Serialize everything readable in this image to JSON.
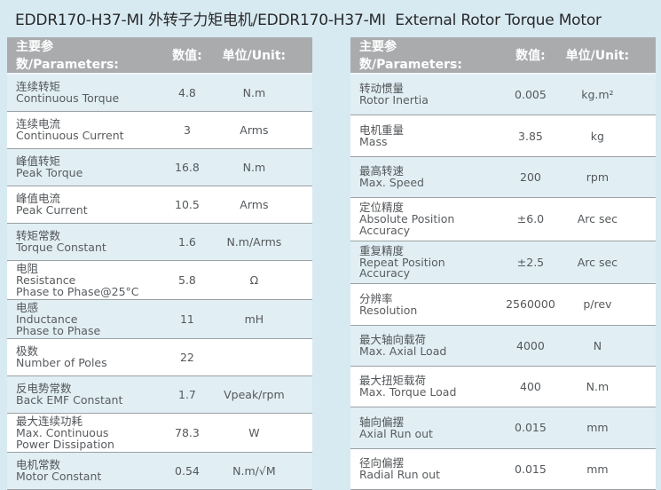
{
  "title": "EDDR170-H37-MI 外转子力矩电机/EDDR170-H37-MI  External Rotor Torque Motor",
  "colors": {
    "page_bg": "#d7e9f1",
    "header_bg": "#a9abad",
    "header_text": "#ffffff",
    "row_alt_bg": "#e1eff5",
    "row_white_bg": "#ffffff",
    "body_text": "#55585b",
    "row_border": "#9aa0a4"
  },
  "left_table": {
    "headers": {
      "param": "主要参数/Parameters:",
      "value": "数值:",
      "unit": "单位/Unit:"
    },
    "rows": [
      {
        "cn": "连续转矩",
        "en": "Continuous Torque",
        "value": "4.8",
        "unit": "N.m"
      },
      {
        "cn": "连续电流",
        "en": "Continuous Current",
        "value": "3",
        "unit": "Arms"
      },
      {
        "cn": "峰值转矩",
        "en": "Peak Torque",
        "value": "16.8",
        "unit": "N.m"
      },
      {
        "cn": "峰值电流",
        "en": "Peak Current",
        "value": "10.5",
        "unit": "Arms"
      },
      {
        "cn": "转矩常数",
        "en": "Torque Constant",
        "value": "1.6",
        "unit": "N.m/Arms"
      },
      {
        "cn": "电阻",
        "en": "Resistance\nPhase to Phase@25°C",
        "value": "5.8",
        "unit": "Ω"
      },
      {
        "cn": "电感",
        "en": "Inductance\nPhase to Phase",
        "value": "11",
        "unit": "mH"
      },
      {
        "cn": "极数",
        "en": "Number of Poles",
        "value": "22",
        "unit": ""
      },
      {
        "cn": "反电势常数",
        "en": "Back EMF Constant",
        "value": "1.7",
        "unit": "Vpeak/rpm"
      },
      {
        "cn": "最大连续功耗",
        "en": "Max. Continuous\nPower Dissipation",
        "value": "78.3",
        "unit": "W"
      },
      {
        "cn": "电机常数",
        "en": "Motor Constant",
        "value": "0.54",
        "unit": "N.m/√M"
      }
    ]
  },
  "right_table": {
    "headers": {
      "param": "主要参数/Parameters:",
      "value": "数值:",
      "unit": "单位/Unit:"
    },
    "rows": [
      {
        "cn": "转动惯量",
        "en": "Rotor Inertia",
        "value": "0.005",
        "unit": "kg.m²"
      },
      {
        "cn": "电机重量",
        "en": "Mass",
        "value": "3.85",
        "unit": "kg"
      },
      {
        "cn": "最高转速",
        "en": "Max. Speed",
        "value": "200",
        "unit": "rpm"
      },
      {
        "cn": "定位精度",
        "en": "Absolute Position Accuracy",
        "value": "±6.0",
        "unit": "Arc sec"
      },
      {
        "cn": "重复精度",
        "en": "Repeat Position Accuracy",
        "value": "±2.5",
        "unit": "Arc sec"
      },
      {
        "cn": "分辨率",
        "en": "Resolution",
        "value": "2560000",
        "unit": "p/rev"
      },
      {
        "cn": "最大轴向载荷",
        "en": "Max. Axial Load",
        "value": "4000",
        "unit": "N"
      },
      {
        "cn": "最大扭矩载荷",
        "en": "Max. Torque Load",
        "value": "400",
        "unit": "N.m"
      },
      {
        "cn": "轴向偏摆",
        "en": "Axial Run out",
        "value": "0.015",
        "unit": "mm"
      },
      {
        "cn": "径向偏摆",
        "en": "Radial Run out",
        "value": "0.015",
        "unit": "mm"
      }
    ]
  }
}
